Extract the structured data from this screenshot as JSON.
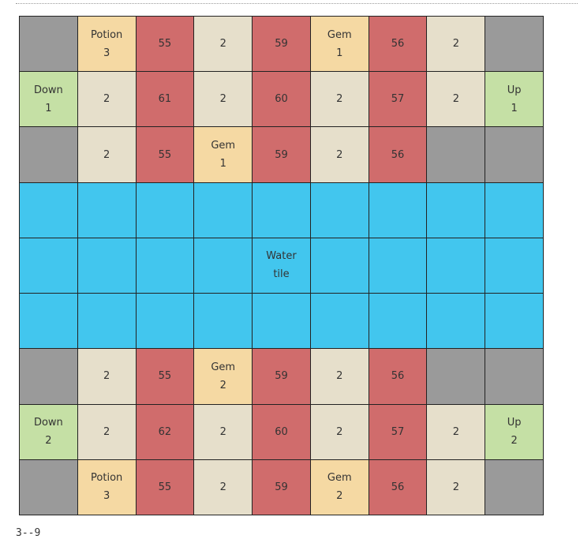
{
  "caption": "3--9",
  "colors": {
    "wall": "#9a9a9a",
    "floor": "#e6dfcb",
    "enemy": "#d06c6c",
    "item": "#f5d9a3",
    "stair": "#c5e0a5",
    "water": "#42c6ee"
  },
  "grid": [
    [
      {
        "type": "wall",
        "text": ""
      },
      {
        "type": "item",
        "text": "Potion\n3"
      },
      {
        "type": "enemy",
        "text": "55"
      },
      {
        "type": "floor",
        "text": "2"
      },
      {
        "type": "enemy",
        "text": "59"
      },
      {
        "type": "item",
        "text": "Gem\n1"
      },
      {
        "type": "enemy",
        "text": "56"
      },
      {
        "type": "floor",
        "text": "2"
      },
      {
        "type": "wall",
        "text": ""
      }
    ],
    [
      {
        "type": "stair",
        "text": "Down\n1"
      },
      {
        "type": "floor",
        "text": "2"
      },
      {
        "type": "enemy",
        "text": "61"
      },
      {
        "type": "floor",
        "text": "2"
      },
      {
        "type": "enemy",
        "text": "60"
      },
      {
        "type": "floor",
        "text": "2"
      },
      {
        "type": "enemy",
        "text": "57"
      },
      {
        "type": "floor",
        "text": "2"
      },
      {
        "type": "stair",
        "text": "Up\n1"
      }
    ],
    [
      {
        "type": "wall",
        "text": ""
      },
      {
        "type": "floor",
        "text": "2"
      },
      {
        "type": "enemy",
        "text": "55"
      },
      {
        "type": "item",
        "text": "Gem\n1"
      },
      {
        "type": "enemy",
        "text": "59"
      },
      {
        "type": "floor",
        "text": "2"
      },
      {
        "type": "enemy",
        "text": "56"
      },
      {
        "type": "wall",
        "text": ""
      },
      {
        "type": "wall",
        "text": ""
      }
    ],
    [
      {
        "type": "water",
        "text": ""
      },
      {
        "type": "water",
        "text": ""
      },
      {
        "type": "water",
        "text": ""
      },
      {
        "type": "water",
        "text": ""
      },
      {
        "type": "water",
        "text": ""
      },
      {
        "type": "water",
        "text": ""
      },
      {
        "type": "water",
        "text": ""
      },
      {
        "type": "water",
        "text": ""
      },
      {
        "type": "water",
        "text": ""
      }
    ],
    [
      {
        "type": "water",
        "text": ""
      },
      {
        "type": "water",
        "text": ""
      },
      {
        "type": "water",
        "text": ""
      },
      {
        "type": "water",
        "text": ""
      },
      {
        "type": "water",
        "text": "Water\ntile"
      },
      {
        "type": "water",
        "text": ""
      },
      {
        "type": "water",
        "text": ""
      },
      {
        "type": "water",
        "text": ""
      },
      {
        "type": "water",
        "text": ""
      }
    ],
    [
      {
        "type": "water",
        "text": ""
      },
      {
        "type": "water",
        "text": ""
      },
      {
        "type": "water",
        "text": ""
      },
      {
        "type": "water",
        "text": ""
      },
      {
        "type": "water",
        "text": ""
      },
      {
        "type": "water",
        "text": ""
      },
      {
        "type": "water",
        "text": ""
      },
      {
        "type": "water",
        "text": ""
      },
      {
        "type": "water",
        "text": ""
      }
    ],
    [
      {
        "type": "wall",
        "text": ""
      },
      {
        "type": "floor",
        "text": "2"
      },
      {
        "type": "enemy",
        "text": "55"
      },
      {
        "type": "item",
        "text": "Gem\n2"
      },
      {
        "type": "enemy",
        "text": "59"
      },
      {
        "type": "floor",
        "text": "2"
      },
      {
        "type": "enemy",
        "text": "56"
      },
      {
        "type": "wall",
        "text": ""
      },
      {
        "type": "wall",
        "text": ""
      }
    ],
    [
      {
        "type": "stair",
        "text": "Down\n2"
      },
      {
        "type": "floor",
        "text": "2"
      },
      {
        "type": "enemy",
        "text": "62"
      },
      {
        "type": "floor",
        "text": "2"
      },
      {
        "type": "enemy",
        "text": "60"
      },
      {
        "type": "floor",
        "text": "2"
      },
      {
        "type": "enemy",
        "text": "57"
      },
      {
        "type": "floor",
        "text": "2"
      },
      {
        "type": "stair",
        "text": "Up\n2"
      }
    ],
    [
      {
        "type": "wall",
        "text": ""
      },
      {
        "type": "item",
        "text": "Potion\n3"
      },
      {
        "type": "enemy",
        "text": "55"
      },
      {
        "type": "floor",
        "text": "2"
      },
      {
        "type": "enemy",
        "text": "59"
      },
      {
        "type": "item",
        "text": "Gem\n2"
      },
      {
        "type": "enemy",
        "text": "56"
      },
      {
        "type": "floor",
        "text": "2"
      },
      {
        "type": "wall",
        "text": ""
      }
    ]
  ]
}
